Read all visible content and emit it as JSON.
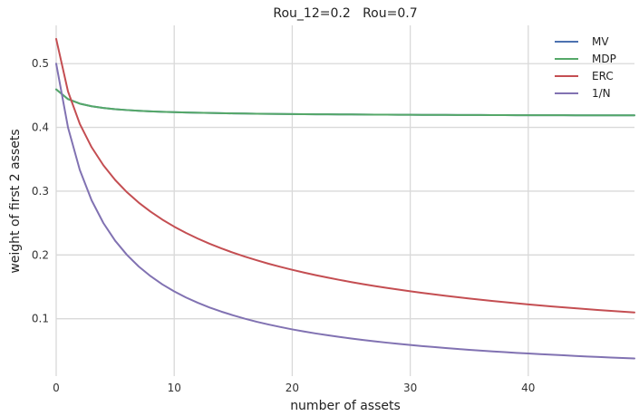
{
  "chart_data": {
    "type": "line",
    "title": "Rou_12=0.2   Rou=0.7",
    "xlabel": "number of assets",
    "ylabel": "weight of first 2 assets",
    "xlim": [
      0,
      49
    ],
    "ylim": [
      0.01,
      0.56
    ],
    "xticks": [
      0,
      10,
      20,
      30,
      40
    ],
    "yticks": [
      0.1,
      0.2,
      0.3,
      0.4,
      0.5
    ],
    "grid": true,
    "background": "#ffffff",
    "legend_position": "top-right",
    "x": [
      0,
      1,
      2,
      3,
      4,
      5,
      6,
      7,
      8,
      9,
      10,
      11,
      12,
      13,
      14,
      15,
      16,
      17,
      18,
      19,
      20,
      21,
      22,
      23,
      24,
      25,
      26,
      27,
      28,
      29,
      30,
      31,
      32,
      33,
      34,
      35,
      36,
      37,
      38,
      39,
      40,
      41,
      42,
      43,
      44,
      45,
      46,
      47,
      48,
      49
    ],
    "series": [
      {
        "name": "MV",
        "color": "#4c72b0",
        "values": [
          0.4596,
          0.4444,
          0.4373,
          0.4332,
          0.4305,
          0.4286,
          0.4272,
          0.4261,
          0.4252,
          0.4245,
          0.4239,
          0.4234,
          0.423,
          0.4226,
          0.4223,
          0.422,
          0.4217,
          0.4215,
          0.4213,
          0.4211,
          0.4209,
          0.4208,
          0.4206,
          0.4205,
          0.4204,
          0.4203,
          0.4202,
          0.4201,
          0.42,
          0.4199,
          0.4198,
          0.4197,
          0.4196,
          0.4196,
          0.4195,
          0.4195,
          0.4194,
          0.4193,
          0.4193,
          0.4192,
          0.4192,
          0.4191,
          0.4191,
          0.4191,
          0.419,
          0.419,
          0.419,
          0.4189,
          0.4189,
          0.4189
        ]
      },
      {
        "name": "MDP",
        "color": "#55a868",
        "values": [
          0.4596,
          0.4444,
          0.4373,
          0.4332,
          0.4305,
          0.4286,
          0.4272,
          0.4261,
          0.4252,
          0.4245,
          0.4239,
          0.4234,
          0.423,
          0.4226,
          0.4223,
          0.422,
          0.4217,
          0.4215,
          0.4213,
          0.4211,
          0.4209,
          0.4208,
          0.4206,
          0.4205,
          0.4204,
          0.4203,
          0.4202,
          0.4201,
          0.42,
          0.4199,
          0.4198,
          0.4197,
          0.4196,
          0.4196,
          0.4195,
          0.4195,
          0.4194,
          0.4193,
          0.4193,
          0.4192,
          0.4192,
          0.4191,
          0.4191,
          0.4191,
          0.419,
          0.419,
          0.419,
          0.4189,
          0.4189,
          0.4189
        ]
      },
      {
        "name": "ERC",
        "color": "#c44e52",
        "values": [
          0.5388,
          0.4564,
          0.4056,
          0.369,
          0.3406,
          0.3175,
          0.2983,
          0.2819,
          0.2678,
          0.2554,
          0.2444,
          0.2345,
          0.2257,
          0.2176,
          0.2103,
          0.2035,
          0.1973,
          0.1916,
          0.1862,
          0.1813,
          0.1767,
          0.1724,
          0.1683,
          0.1645,
          0.1609,
          0.1575,
          0.1543,
          0.1513,
          0.1484,
          0.1457,
          0.1431,
          0.1406,
          0.1382,
          0.136,
          0.1338,
          0.1317,
          0.1297,
          0.1278,
          0.126,
          0.1242,
          0.1225,
          0.1209,
          0.1193,
          0.1178,
          0.1164,
          0.115,
          0.1136,
          0.1123,
          0.1111,
          0.1099
        ]
      },
      {
        "name": "1/N",
        "color": "#8172b2",
        "values": [
          0.5,
          0.4,
          0.3333,
          0.2857,
          0.25,
          0.2222,
          0.2,
          0.1818,
          0.1667,
          0.1538,
          0.1429,
          0.1333,
          0.125,
          0.1176,
          0.1111,
          0.1053,
          0.1,
          0.0952,
          0.0909,
          0.087,
          0.0833,
          0.08,
          0.0769,
          0.0741,
          0.0714,
          0.069,
          0.0667,
          0.0645,
          0.0625,
          0.0606,
          0.0588,
          0.0571,
          0.0556,
          0.0541,
          0.0526,
          0.0513,
          0.05,
          0.0488,
          0.0476,
          0.0465,
          0.0455,
          0.0444,
          0.0435,
          0.0426,
          0.0417,
          0.0408,
          0.04,
          0.0392,
          0.0385,
          0.0377
        ]
      }
    ]
  }
}
